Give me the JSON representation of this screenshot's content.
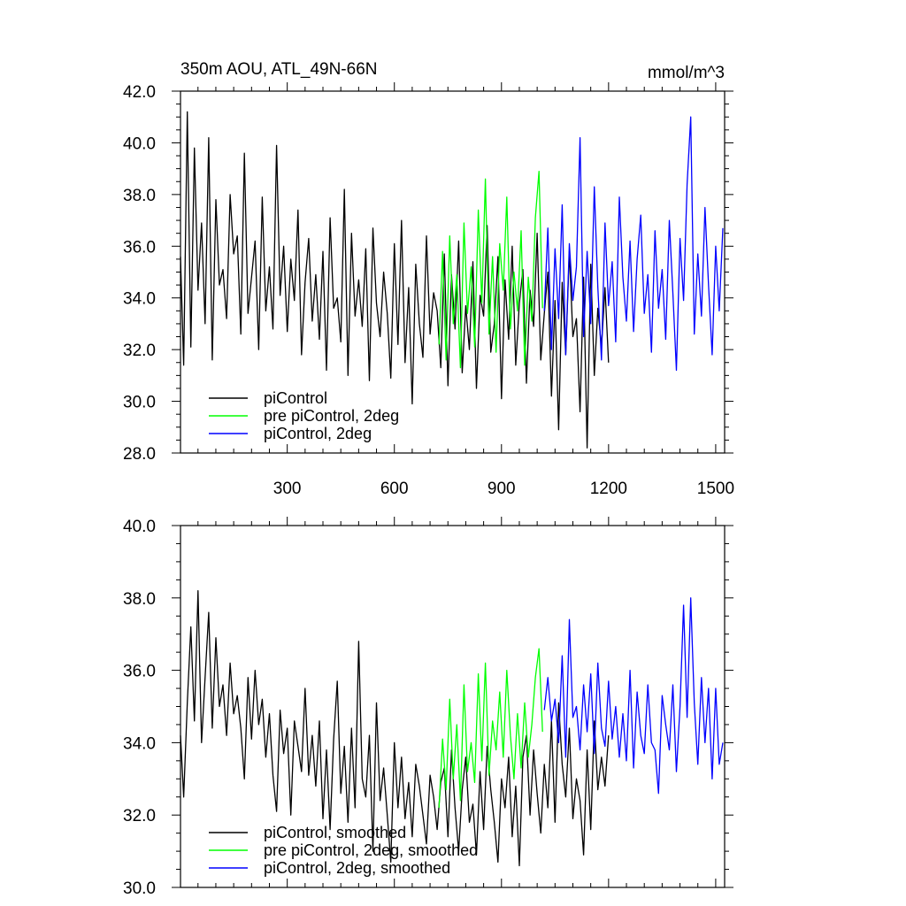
{
  "colors": {
    "black": "#000000",
    "green": "#00ff00",
    "blue": "#0000ff"
  },
  "chart_data": [
    {
      "type": "line",
      "title": "350m AOU, ATL_49N-66N",
      "units": "mmol/m^3",
      "xlim": [
        1,
        1525
      ],
      "ylim": [
        28,
        42
      ],
      "xticks": [
        300,
        600,
        900,
        1200,
        1500
      ],
      "xtick_labels": [
        "300",
        "600",
        "900",
        "1200",
        "1500"
      ],
      "yticks": [
        28,
        30,
        32,
        34,
        36,
        38,
        40,
        42
      ],
      "ytick_labels": [
        "28.0",
        "30.0",
        "32.0",
        "34.0",
        "36.0",
        "38.0",
        "40.0",
        "42.0"
      ],
      "grid": false,
      "legend_position": "bottom-left",
      "series": [
        {
          "name": "piControl",
          "color": "#000000",
          "x": [
            1,
            10,
            20,
            30,
            40,
            50,
            60,
            70,
            80,
            90,
            100,
            110,
            120,
            130,
            140,
            150,
            160,
            170,
            180,
            190,
            200,
            210,
            220,
            230,
            240,
            250,
            260,
            270,
            280,
            290,
            300,
            310,
            320,
            330,
            340,
            350,
            360,
            370,
            380,
            390,
            400,
            410,
            420,
            430,
            440,
            450,
            460,
            470,
            480,
            490,
            500,
            510,
            520,
            530,
            540,
            550,
            560,
            570,
            580,
            590,
            600,
            610,
            620,
            630,
            640,
            650,
            660,
            670,
            680,
            690,
            700,
            710,
            720,
            730,
            740,
            750,
            760,
            770,
            780,
            790,
            800,
            810,
            820,
            830,
            840,
            850,
            860,
            870,
            880,
            890,
            900,
            910,
            920,
            930,
            940,
            950,
            960,
            970,
            980,
            990,
            1000,
            1010,
            1020,
            1030,
            1040,
            1050,
            1060,
            1070,
            1080,
            1090,
            1100,
            1110,
            1120,
            1130,
            1140,
            1150,
            1160,
            1170,
            1180,
            1190,
            1200
          ],
          "y": [
            35.6,
            31.4,
            41.2,
            32.1,
            39.8,
            34.3,
            36.9,
            33.0,
            40.2,
            31.6,
            37.8,
            34.5,
            35.1,
            33.2,
            38.0,
            35.7,
            36.4,
            32.6,
            39.6,
            33.4,
            34.8,
            36.2,
            32.0,
            37.9,
            33.5,
            35.2,
            32.8,
            39.9,
            34.1,
            36.0,
            32.7,
            35.5,
            33.9,
            37.4,
            31.8,
            34.6,
            36.3,
            33.1,
            34.9,
            32.4,
            35.8,
            31.2,
            37.1,
            33.6,
            34.0,
            32.3,
            38.2,
            31.0,
            36.5,
            33.3,
            34.7,
            32.9,
            35.9,
            30.8,
            36.7,
            33.8,
            32.5,
            35.0,
            33.4,
            30.9,
            36.1,
            32.2,
            37.0,
            31.5,
            34.4,
            29.9,
            35.3,
            33.0,
            31.7,
            36.4,
            32.6,
            34.2,
            33.5,
            31.3,
            35.7,
            30.6,
            34.9,
            32.8,
            36.2,
            31.1,
            33.7,
            32.0,
            35.4,
            30.5,
            34.1,
            33.3,
            36.8,
            31.9,
            33.0,
            35.6,
            30.1,
            34.7,
            32.4,
            36.0,
            31.4,
            33.8,
            35.1,
            30.7,
            34.3,
            32.9,
            36.5,
            31.6,
            33.4,
            35.0,
            30.2,
            33.9,
            28.9,
            34.6,
            31.8,
            35.8,
            32.5,
            33.2,
            29.6,
            34.8,
            28.2,
            35.3,
            31.0,
            33.6,
            32.1,
            34.4,
            31.5
          ]
        },
        {
          "name": "pre piControl, 2deg",
          "color": "#00ff00",
          "x": [
            725,
            735,
            745,
            755,
            765,
            775,
            785,
            795,
            805,
            815,
            825,
            835,
            845,
            855,
            865,
            875,
            885,
            895,
            905,
            915,
            925,
            935,
            945,
            955,
            965,
            975,
            985,
            995,
            1005,
            1015
          ],
          "y": [
            32.2,
            35.8,
            31.6,
            36.4,
            33.0,
            34.9,
            31.3,
            36.9,
            33.4,
            35.2,
            32.1,
            37.4,
            33.8,
            38.6,
            32.6,
            35.6,
            31.9,
            36.1,
            34.3,
            37.9,
            32.8,
            35.0,
            33.5,
            36.6,
            31.4,
            34.8,
            33.1,
            37.1,
            38.9,
            33.6
          ]
        },
        {
          "name": "piControl, 2deg",
          "color": "#0000ff",
          "x": [
            1020,
            1030,
            1040,
            1050,
            1060,
            1070,
            1080,
            1090,
            1100,
            1110,
            1120,
            1130,
            1140,
            1150,
            1160,
            1170,
            1180,
            1190,
            1200,
            1210,
            1220,
            1230,
            1240,
            1250,
            1260,
            1270,
            1280,
            1290,
            1300,
            1310,
            1320,
            1330,
            1340,
            1350,
            1360,
            1370,
            1380,
            1390,
            1400,
            1410,
            1420,
            1430,
            1440,
            1450,
            1460,
            1470,
            1480,
            1490,
            1500,
            1510,
            1520
          ],
          "y": [
            33.5,
            36.7,
            32.0,
            35.9,
            33.2,
            37.6,
            31.8,
            36.1,
            33.9,
            35.2,
            40.2,
            32.5,
            35.8,
            33.0,
            38.3,
            34.4,
            31.6,
            36.9,
            33.7,
            35.4,
            32.3,
            37.9,
            34.8,
            33.1,
            36.2,
            32.7,
            35.5,
            37.2,
            33.4,
            34.9,
            31.9,
            36.6,
            33.6,
            35.1,
            32.4,
            37.0,
            34.2,
            31.2,
            36.3,
            33.9,
            38.4,
            41.0,
            32.6,
            35.7,
            33.3,
            37.5,
            34.5,
            31.8,
            36.0,
            33.5,
            36.7
          ]
        }
      ],
      "legend": [
        "piControl",
        "pre piControl, 2deg",
        "piControl, 2deg"
      ]
    },
    {
      "type": "line",
      "xlim": [
        1,
        1525
      ],
      "ylim": [
        30,
        40
      ],
      "xticks": [
        300,
        600,
        900,
        1200,
        1500
      ],
      "yticks": [
        30,
        32,
        34,
        36,
        38,
        40
      ],
      "ytick_labels": [
        "30.0",
        "32.0",
        "34.0",
        "36.0",
        "38.0",
        "40.0"
      ],
      "grid": false,
      "legend_position": "bottom-left",
      "series": [
        {
          "name": "piControl, smoothed",
          "color": "#000000",
          "x": [
            1,
            10,
            20,
            30,
            40,
            50,
            60,
            70,
            80,
            90,
            100,
            110,
            120,
            130,
            140,
            150,
            160,
            170,
            180,
            190,
            200,
            210,
            220,
            230,
            240,
            250,
            260,
            270,
            280,
            290,
            300,
            310,
            320,
            330,
            340,
            350,
            360,
            370,
            380,
            390,
            400,
            410,
            420,
            430,
            440,
            450,
            460,
            470,
            480,
            490,
            500,
            510,
            520,
            530,
            540,
            550,
            560,
            570,
            580,
            590,
            600,
            610,
            620,
            630,
            640,
            650,
            660,
            670,
            680,
            690,
            700,
            710,
            720,
            730,
            740,
            750,
            760,
            770,
            780,
            790,
            800,
            810,
            820,
            830,
            840,
            850,
            860,
            870,
            880,
            890,
            900,
            910,
            920,
            930,
            940,
            950,
            960,
            970,
            980,
            990,
            1000,
            1010,
            1020,
            1030,
            1040,
            1050,
            1060,
            1070,
            1080,
            1090,
            1100,
            1110,
            1120,
            1130,
            1140,
            1150,
            1160,
            1170,
            1180,
            1190,
            1200
          ],
          "y": [
            34.2,
            32.5,
            35.1,
            37.2,
            34.6,
            38.2,
            34.0,
            35.8,
            37.6,
            34.4,
            36.9,
            35.0,
            35.6,
            34.2,
            36.2,
            34.8,
            35.3,
            34.4,
            33.0,
            35.8,
            34.1,
            36.0,
            34.5,
            35.2,
            33.6,
            34.8,
            33.1,
            32.1,
            34.9,
            33.7,
            34.4,
            32.0,
            34.6,
            33.9,
            33.2,
            35.5,
            33.1,
            34.2,
            32.8,
            34.6,
            31.9,
            33.8,
            31.6,
            34.1,
            35.7,
            32.6,
            33.9,
            31.8,
            34.4,
            32.2,
            36.8,
            33.0,
            32.5,
            34.2,
            31.0,
            35.1,
            32.4,
            33.3,
            32.0,
            30.7,
            34.0,
            32.2,
            33.6,
            31.9,
            32.9,
            31.4,
            33.4,
            32.8,
            32.0,
            31.2,
            33.1,
            32.5,
            31.6,
            32.9,
            33.3,
            31.4,
            33.8,
            32.2,
            31.0,
            32.7,
            33.6,
            31.8,
            32.3,
            30.9,
            33.2,
            31.6,
            33.9,
            32.7,
            31.8,
            30.7,
            33.0,
            32.2,
            33.6,
            31.4,
            32.8,
            30.6,
            33.6,
            34.2,
            32.0,
            33.8,
            32.6,
            31.5,
            33.4,
            32.2,
            34.6,
            31.8,
            35.1,
            33.4,
            32.5,
            34.4,
            31.9,
            33.0,
            32.4,
            30.9,
            33.8,
            31.6,
            34.6,
            32.7,
            33.6,
            32.8,
            34.2
          ]
        },
        {
          "name": "pre piControl, 2deg, smoothed",
          "color": "#00ff00",
          "x": [
            725,
            735,
            745,
            755,
            765,
            775,
            785,
            795,
            805,
            815,
            825,
            835,
            845,
            855,
            865,
            875,
            885,
            895,
            905,
            915,
            925,
            935,
            945,
            955,
            965,
            975,
            985,
            995,
            1005,
            1015
          ],
          "y": [
            32.2,
            34.1,
            32.7,
            35.2,
            33.0,
            34.5,
            32.4,
            35.6,
            33.2,
            34.0,
            32.9,
            35.9,
            33.5,
            36.2,
            33.1,
            34.6,
            33.8,
            35.4,
            33.6,
            36.0,
            34.2,
            33.0,
            34.8,
            33.3,
            35.1,
            33.6,
            34.5,
            35.8,
            36.6,
            34.3
          ]
        },
        {
          "name": "piControl, 2deg, smoothed",
          "color": "#0000ff",
          "x": [
            1020,
            1030,
            1040,
            1050,
            1060,
            1070,
            1080,
            1090,
            1100,
            1110,
            1120,
            1130,
            1140,
            1150,
            1160,
            1170,
            1180,
            1190,
            1200,
            1210,
            1220,
            1230,
            1240,
            1250,
            1260,
            1270,
            1280,
            1290,
            1300,
            1310,
            1320,
            1330,
            1340,
            1350,
            1360,
            1370,
            1380,
            1390,
            1400,
            1410,
            1420,
            1430,
            1440,
            1450,
            1460,
            1470,
            1480,
            1490,
            1500,
            1510,
            1520
          ],
          "y": [
            34.9,
            35.8,
            34.6,
            35.2,
            34.0,
            36.4,
            33.6,
            37.4,
            34.7,
            35.0,
            33.8,
            35.6,
            34.3,
            35.9,
            33.7,
            36.2,
            34.4,
            33.9,
            35.7,
            34.1,
            35.0,
            33.6,
            34.8,
            33.5,
            36.0,
            33.3,
            35.4,
            34.2,
            33.7,
            35.6,
            34.0,
            33.8,
            32.6,
            35.3,
            34.5,
            33.8,
            35.6,
            33.2,
            35.0,
            37.8,
            34.7,
            38.0,
            35.1,
            33.4,
            35.8,
            34.0,
            35.5,
            33.0,
            35.5,
            33.4,
            34.0
          ]
        }
      ],
      "legend": [
        "piControl, smoothed",
        "pre piControl, 2deg, smoothed",
        "piControl, 2deg, smoothed"
      ]
    }
  ]
}
